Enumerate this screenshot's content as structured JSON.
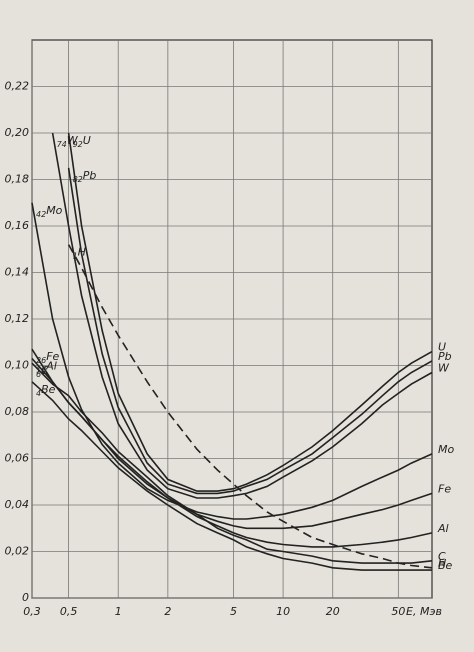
{
  "chart_data": {
    "type": "line",
    "x_label": "E, Мэв",
    "log_x": true,
    "grid": true,
    "color": "#222222",
    "x": [
      0.3,
      0.4,
      0.5,
      0.6,
      0.8,
      1,
      1.5,
      2,
      3,
      4,
      5,
      6,
      8,
      10,
      15,
      20,
      30,
      40,
      50,
      60,
      80
    ],
    "xlim": [
      0.3,
      80
    ],
    "ylim": [
      0,
      0.24
    ],
    "xticks": [
      {
        "value": 0.3,
        "label": "0,3"
      },
      {
        "value": 0.5,
        "label": "0,5"
      },
      1,
      2,
      5,
      10,
      20,
      50
    ],
    "yticks": [
      0,
      {
        "value": 0.02,
        "label": "0,02"
      },
      {
        "value": 0.04,
        "label": "0,04"
      },
      {
        "value": 0.06,
        "label": "0,06"
      },
      {
        "value": 0.08,
        "label": "0,08"
      },
      {
        "value": 0.1,
        "label": "0,10"
      },
      {
        "value": 0.12,
        "label": "0,12"
      },
      {
        "value": 0.14,
        "label": "0,14"
      },
      {
        "value": 0.16,
        "label": "0,16"
      },
      {
        "value": 0.18,
        "label": "0,18"
      },
      {
        "value": 0.2,
        "label": "0,20"
      },
      {
        "value": 0.22,
        "label": "0,22"
      }
    ],
    "series": [
      {
        "name": "U",
        "z": 92,
        "values": [
          null,
          null,
          0.2,
          0.16,
          0.115,
          0.088,
          0.062,
          0.051,
          0.046,
          0.046,
          0.047,
          0.049,
          0.053,
          0.057,
          0.065,
          0.072,
          0.083,
          0.091,
          0.097,
          0.101,
          0.106
        ]
      },
      {
        "name": "Pb",
        "z": 82,
        "values": [
          null,
          null,
          0.185,
          0.148,
          0.105,
          0.082,
          0.058,
          0.049,
          0.045,
          0.045,
          0.046,
          0.048,
          0.051,
          0.055,
          0.062,
          0.069,
          0.079,
          0.087,
          0.093,
          0.097,
          0.102
        ]
      },
      {
        "name": "W",
        "z": 74,
        "values": [
          null,
          0.2,
          0.16,
          0.13,
          0.095,
          0.075,
          0.055,
          0.047,
          0.043,
          0.043,
          0.044,
          0.045,
          0.048,
          0.052,
          0.059,
          0.065,
          0.075,
          0.083,
          0.088,
          0.092,
          0.097
        ]
      },
      {
        "name": "Mo",
        "z": 42,
        "values": [
          0.17,
          0.12,
          0.095,
          0.081,
          0.066,
          0.058,
          0.047,
          0.042,
          0.037,
          0.035,
          0.034,
          0.034,
          0.035,
          0.036,
          0.039,
          0.042,
          0.048,
          0.052,
          0.055,
          0.058,
          0.062
        ]
      },
      {
        "name": "Fe",
        "z": 26,
        "values": [
          0.107,
          0.093,
          0.084,
          0.078,
          0.068,
          0.06,
          0.049,
          0.043,
          0.036,
          0.033,
          0.031,
          0.03,
          0.03,
          0.03,
          0.031,
          0.033,
          0.036,
          0.038,
          0.04,
          0.042,
          0.045
        ]
      },
      {
        "name": "Al",
        "z": 13,
        "values": [
          0.103,
          0.093,
          0.084,
          0.078,
          0.068,
          0.061,
          0.05,
          0.043,
          0.035,
          0.031,
          0.028,
          0.026,
          0.024,
          0.023,
          0.022,
          0.022,
          0.023,
          0.024,
          0.025,
          0.026,
          0.028
        ]
      },
      {
        "name": "C",
        "z": 6,
        "values": [
          0.101,
          0.092,
          0.087,
          0.08,
          0.071,
          0.063,
          0.052,
          0.044,
          0.036,
          0.03,
          0.027,
          0.025,
          0.021,
          0.02,
          0.018,
          0.016,
          0.015,
          0.015,
          0.015,
          0.015,
          0.016
        ]
      },
      {
        "name": "Be",
        "z": 4,
        "values": [
          0.093,
          0.085,
          0.077,
          0.072,
          0.063,
          0.056,
          0.046,
          0.04,
          0.032,
          0.028,
          0.025,
          0.022,
          0.019,
          0.017,
          0.015,
          0.013,
          0.012,
          0.012,
          0.012,
          0.012,
          0.012
        ]
      },
      {
        "name": "H",
        "z": 1,
        "dashed": true,
        "values": [
          null,
          null,
          0.152,
          0.142,
          0.125,
          0.113,
          0.093,
          0.08,
          0.064,
          0.055,
          0.049,
          0.044,
          0.037,
          0.033,
          0.026,
          0.023,
          0.019,
          0.017,
          0.015,
          0.014,
          0.013
        ]
      }
    ]
  }
}
